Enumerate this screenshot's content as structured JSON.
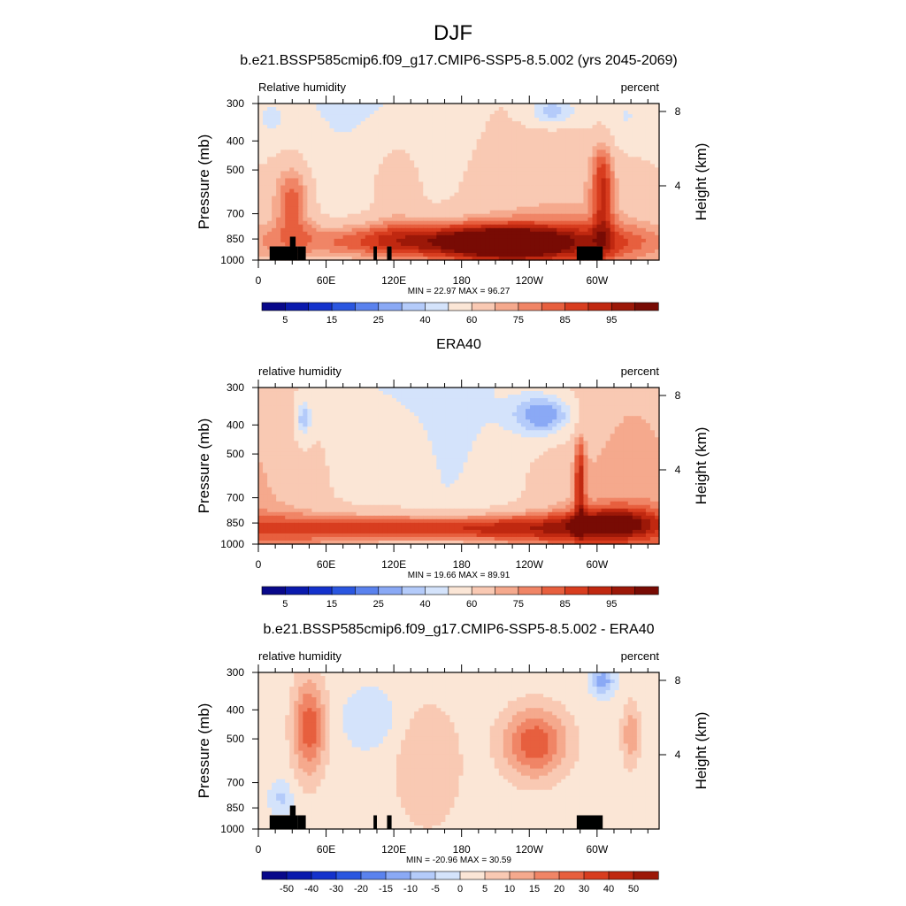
{
  "figure_title": "DJF",
  "chart_data": [
    {
      "type": "heatmap",
      "title": "b.e21.BSSP585cmip6.f09_g17.CMIP6-SSP5-8.5.002 (yrs 2045-2069)",
      "left_label": "Relative humidity",
      "right_label": "percent",
      "ylabel": "Pressure (mb)",
      "ylabel_right": "Height (km)",
      "x_ticks": [
        "0",
        "60E",
        "120E",
        "180",
        "120W",
        "60W"
      ],
      "x_tick_lon": [
        0,
        60,
        120,
        180,
        240,
        300
      ],
      "xlim": [
        0,
        355
      ],
      "y_ticks": [
        300,
        400,
        500,
        700,
        850,
        1000
      ],
      "ylim": [
        1000,
        300
      ],
      "y_log": true,
      "height_ticks": [
        8,
        4
      ],
      "stats": "MIN =  22.97  MAX =  96.27",
      "colorbar_labels": [
        "5",
        "15",
        "25",
        "40",
        "60",
        "75",
        "85",
        "95"
      ],
      "colorbar_levels": [
        0,
        5,
        10,
        15,
        20,
        25,
        30,
        35,
        40,
        50,
        60,
        65,
        70,
        75,
        80,
        85,
        90,
        95
      ],
      "colorbar_colors": [
        "#08088a",
        "#0a1aad",
        "#1432cc",
        "#2a56e0",
        "#5a82ee",
        "#8aa9f5",
        "#b4cbfa",
        "#d4e3fb",
        "#fbe6d6",
        "#f9c9b3",
        "#f5a98d",
        "#f08566",
        "#e75f3e",
        "#d83d1f",
        "#c02810",
        "#9c1808",
        "#780b04"
      ],
      "topography": true
    },
    {
      "type": "heatmap",
      "title": "ERA40",
      "left_label": "relative humidity",
      "right_label": "percent",
      "ylabel": "Pressure (mb)",
      "ylabel_right": "Height (km)",
      "x_ticks": [
        "0",
        "60E",
        "120E",
        "180",
        "120W",
        "60W"
      ],
      "x_tick_lon": [
        0,
        60,
        120,
        180,
        240,
        300
      ],
      "xlim": [
        0,
        355
      ],
      "y_ticks": [
        300,
        400,
        500,
        700,
        850,
        1000
      ],
      "ylim": [
        1000,
        300
      ],
      "y_log": true,
      "height_ticks": [
        8,
        4
      ],
      "stats": "MIN =  19.66  MAX =  89.91",
      "colorbar_labels": [
        "5",
        "15",
        "25",
        "40",
        "60",
        "75",
        "85",
        "95"
      ],
      "colorbar_levels": [
        0,
        5,
        10,
        15,
        20,
        25,
        30,
        35,
        40,
        50,
        60,
        65,
        70,
        75,
        80,
        85,
        90,
        95
      ],
      "colorbar_colors": [
        "#08088a",
        "#0a1aad",
        "#1432cc",
        "#2a56e0",
        "#5a82ee",
        "#8aa9f5",
        "#b4cbfa",
        "#d4e3fb",
        "#fbe6d6",
        "#f9c9b3",
        "#f5a98d",
        "#f08566",
        "#e75f3e",
        "#d83d1f",
        "#c02810",
        "#9c1808",
        "#780b04"
      ],
      "topography": false
    },
    {
      "type": "heatmap",
      "title": "b.e21.BSSP585cmip6.f09_g17.CMIP6-SSP5-8.5.002 - ERA40",
      "left_label": "relative humidity",
      "right_label": "percent",
      "ylabel": "Pressure (mb)",
      "ylabel_right": "Height (km)",
      "x_ticks": [
        "0",
        "60E",
        "120E",
        "180",
        "120W",
        "60W"
      ],
      "x_tick_lon": [
        0,
        60,
        120,
        180,
        240,
        300
      ],
      "xlim": [
        0,
        355
      ],
      "y_ticks": [
        300,
        400,
        500,
        700,
        850,
        1000
      ],
      "ylim": [
        1000,
        300
      ],
      "y_log": true,
      "height_ticks": [
        8,
        4
      ],
      "stats": "MIN = -20.96  MAX =  30.59",
      "colorbar_labels": [
        "-50",
        "-40",
        "-30",
        "-20",
        "-15",
        "-10",
        "-5",
        "0",
        "5",
        "10",
        "15",
        "20",
        "30",
        "40",
        "50"
      ],
      "colorbar_levels": [
        -60,
        -50,
        -40,
        -30,
        -20,
        -15,
        -10,
        -5,
        0,
        5,
        10,
        15,
        20,
        30,
        40,
        50,
        60
      ],
      "colorbar_colors": [
        "#08088a",
        "#0a1aad",
        "#1432cc",
        "#2a56e0",
        "#5a82ee",
        "#8aa9f5",
        "#b4cbfa",
        "#d4e3fb",
        "#fbe6d6",
        "#f9c9b3",
        "#f5a98d",
        "#f08566",
        "#e75f3e",
        "#d83d1f",
        "#c02810",
        "#9c1808"
      ],
      "topography": true
    }
  ]
}
